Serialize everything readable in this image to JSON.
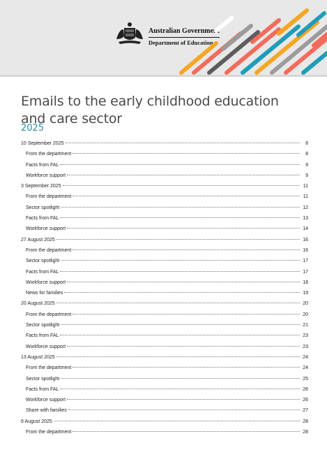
{
  "header": {
    "government": "Australian Government",
    "department": "Department of Education",
    "brand_colors": [
      "#1f9db8",
      "#f26b5b",
      "#f5a623",
      "#5c5c5c",
      "#9b9b9b",
      "#d8d8d8"
    ]
  },
  "document": {
    "title": "Emails to the early childhood education and care sector",
    "year": "2025"
  },
  "toc": [
    {
      "label": "10 September 2025",
      "page": "8",
      "level": 0
    },
    {
      "label": "From the department",
      "page": "8",
      "level": 1
    },
    {
      "label": "Facts from FAL",
      "page": "9",
      "level": 1
    },
    {
      "label": "Workforce support",
      "page": "9",
      "level": 1
    },
    {
      "label": "3 September 2025",
      "page": "11",
      "level": 0
    },
    {
      "label": "From the department",
      "page": "11",
      "level": 1
    },
    {
      "label": "Sector spotlight",
      "page": "12",
      "level": 1
    },
    {
      "label": "Facts from FAL",
      "page": "13",
      "level": 1
    },
    {
      "label": "Workforce support",
      "page": "14",
      "level": 1
    },
    {
      "label": "27 August 2025",
      "page": "16",
      "level": 0
    },
    {
      "label": "From the department",
      "page": "16",
      "level": 1
    },
    {
      "label": "Sector spotlight",
      "page": "17",
      "level": 1
    },
    {
      "label": "Facts from FAL",
      "page": "17",
      "level": 1
    },
    {
      "label": "Workforce support",
      "page": "18",
      "level": 1
    },
    {
      "label": "News for families",
      "page": "19",
      "level": 1
    },
    {
      "label": "20 August 2025",
      "page": "20",
      "level": 0
    },
    {
      "label": "From the department",
      "page": "20",
      "level": 1
    },
    {
      "label": "Sector spotlight",
      "page": "21",
      "level": 1
    },
    {
      "label": "Facts from FAL",
      "page": "23",
      "level": 1
    },
    {
      "label": "Workforce support",
      "page": "23",
      "level": 1
    },
    {
      "label": "13 August 2025",
      "page": "24",
      "level": 0
    },
    {
      "label": "From the department",
      "page": "24",
      "level": 1
    },
    {
      "label": "Sector spotlight",
      "page": "25",
      "level": 1
    },
    {
      "label": "Facts from FAL",
      "page": "26",
      "level": 1
    },
    {
      "label": "Workforce support",
      "page": "26",
      "level": 1
    },
    {
      "label": "Share with families",
      "page": "27",
      "level": 1
    },
    {
      "label": "6 August 2025",
      "page": "28",
      "level": 0
    },
    {
      "label": "From the department",
      "page": "28",
      "level": 1
    }
  ]
}
